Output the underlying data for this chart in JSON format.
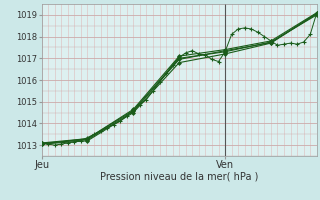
{
  "background_color": "#cce8e8",
  "plot_bg_color": "#ddf0f0",
  "grid_color_h": "#ccaaaa",
  "grid_color_v": "#ddbbbb",
  "line_color": "#1a5c1a",
  "marker_color": "#1a5c1a",
  "ylim": [
    1012.5,
    1019.5
  ],
  "xlim": [
    0,
    42
  ],
  "yticks": [
    1013,
    1014,
    1015,
    1016,
    1017,
    1018,
    1019
  ],
  "xtick_positions": [
    0,
    28
  ],
  "xtick_labels": [
    "Jeu",
    "Ven"
  ],
  "xlabel": "Pression niveau de la mer( hPa )",
  "vline_x": 28,
  "vline_color": "#555555",
  "series0": [
    0,
    1013.1,
    1,
    1013.05,
    2,
    1013.0,
    3,
    1013.05,
    4,
    1013.1,
    5,
    1013.15,
    6,
    1013.2,
    7,
    1013.35,
    8,
    1013.5,
    9,
    1013.65,
    10,
    1013.8,
    11,
    1013.95,
    12,
    1014.1,
    13,
    1014.35,
    14,
    1014.6,
    15,
    1014.85,
    16,
    1015.1,
    17,
    1015.5,
    18,
    1015.9,
    19,
    1016.3,
    20,
    1016.7,
    21,
    1017.05,
    22,
    1017.25,
    23,
    1017.35,
    24,
    1017.2,
    25,
    1017.15,
    26,
    1016.95,
    27,
    1016.85,
    28,
    1017.3,
    29,
    1018.1,
    30,
    1018.35,
    31,
    1018.4,
    32,
    1018.35,
    33,
    1018.2,
    34,
    1018.0,
    35,
    1017.8,
    36,
    1017.6,
    37,
    1017.65,
    38,
    1017.7,
    39,
    1017.65,
    40,
    1017.75,
    41,
    1018.1,
    42,
    1019.1
  ],
  "series1": [
    0,
    1013.05,
    7,
    1013.3,
    14,
    1014.6,
    21,
    1017.0,
    28,
    1017.3,
    35,
    1017.75,
    42,
    1019.0
  ],
  "series2": [
    0,
    1013.05,
    7,
    1013.2,
    14,
    1014.5,
    21,
    1016.8,
    28,
    1017.2,
    35,
    1017.7,
    42,
    1019.05
  ],
  "series3": [
    0,
    1013.1,
    7,
    1013.3,
    14,
    1014.65,
    21,
    1017.1,
    28,
    1017.4,
    35,
    1017.8,
    42,
    1019.1
  ],
  "series4": [
    0,
    1013.08,
    7,
    1013.25,
    14,
    1014.55,
    21,
    1016.95,
    28,
    1017.35,
    35,
    1017.72,
    42,
    1019.08
  ]
}
